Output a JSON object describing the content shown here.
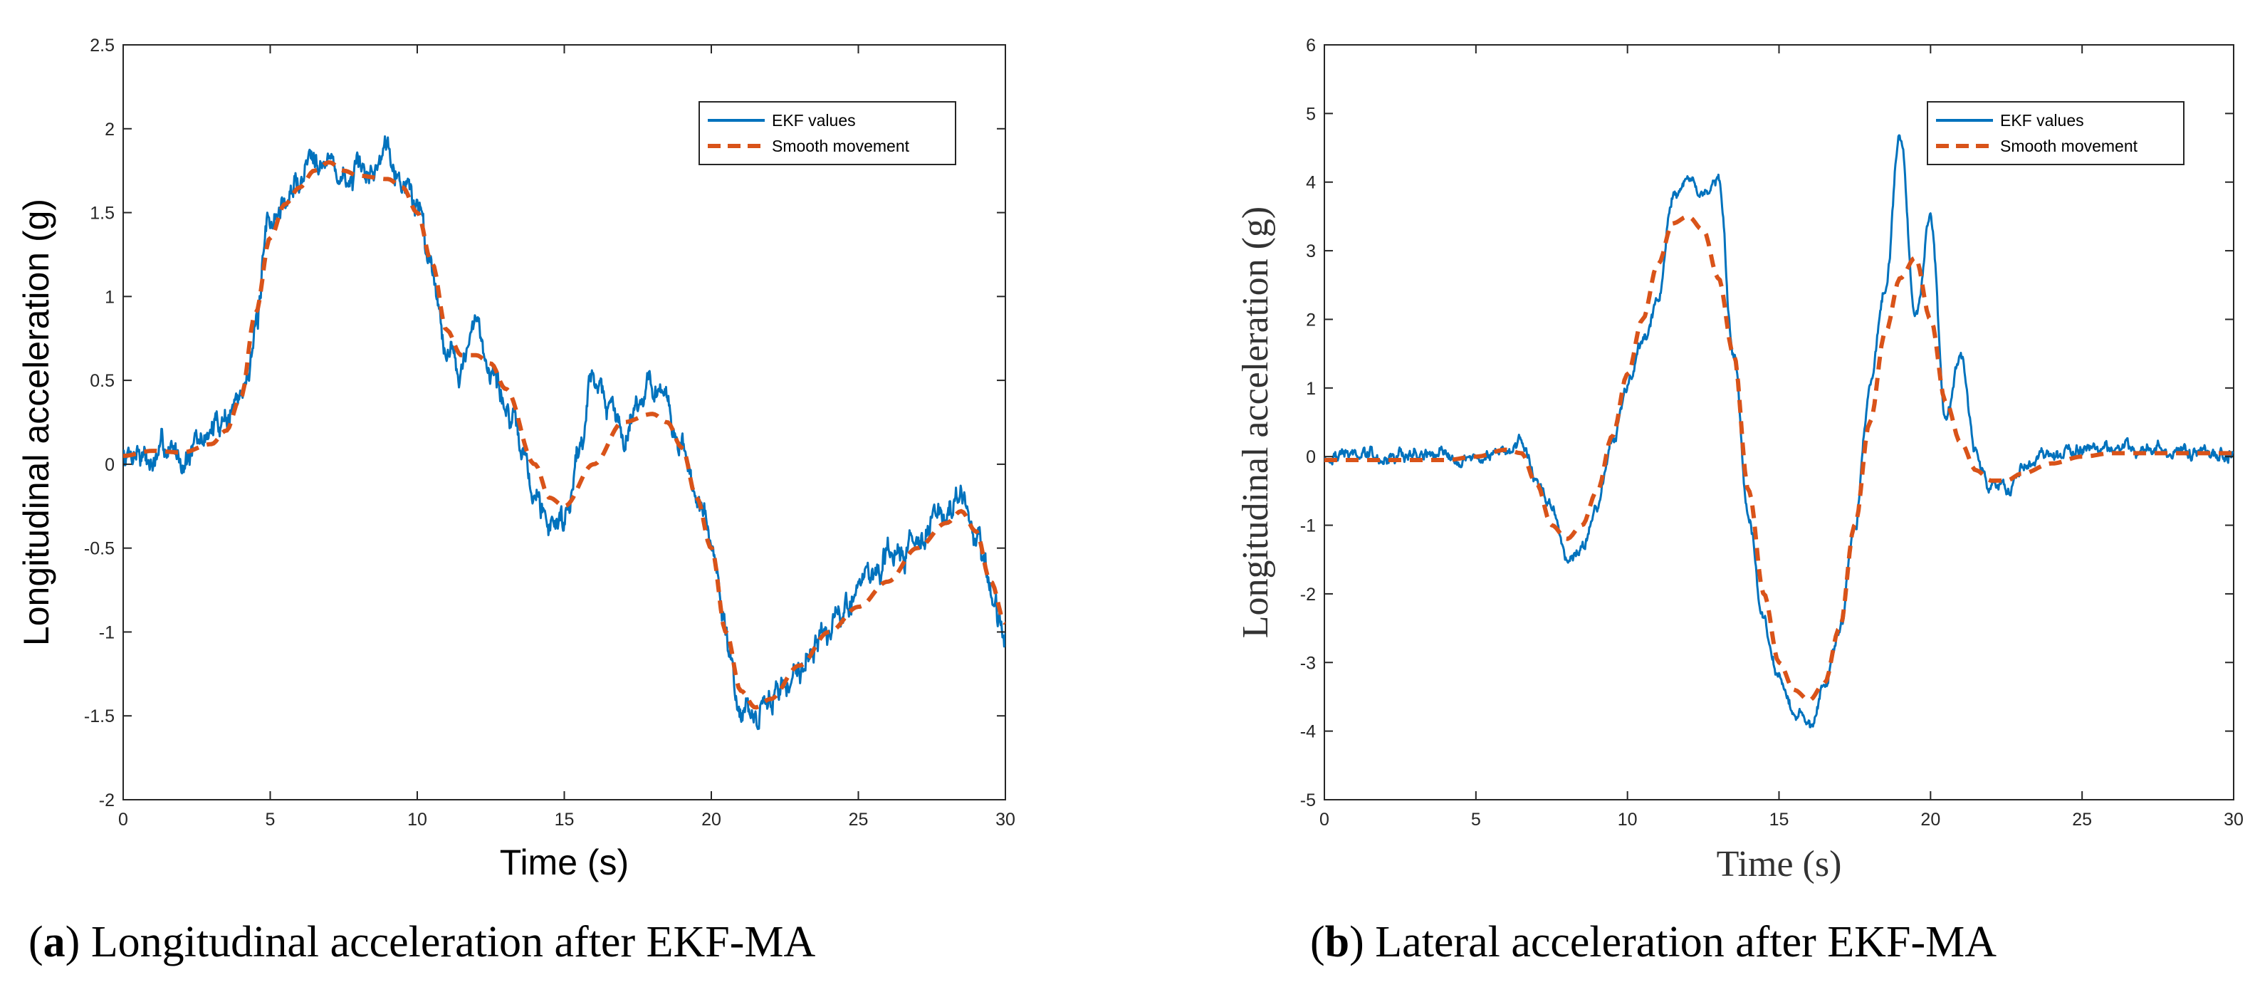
{
  "chart_data": [
    {
      "type": "line",
      "panel_tag": "a",
      "caption_text": "Longitudinal acceleration after EKF-MA",
      "xlabel": "Time (s)",
      "ylabel": "Longitudinal acceleration (g)",
      "xlim": [
        0,
        30
      ],
      "ylim": [
        -2,
        2.5
      ],
      "xticks": [
        "0",
        "5",
        "10",
        "15",
        "20",
        "25",
        "30"
      ],
      "yticks": [
        "-2",
        "-1.5",
        "-1",
        "-0.5",
        "0",
        "0.5",
        "1",
        "1.5",
        "2",
        "2.5"
      ],
      "grid": false,
      "legend_position": "top-right",
      "series": [
        {
          "name": "EKF values",
          "style": "solid",
          "color": "#0072BD",
          "x": [
            0,
            0.5,
            1,
            1.5,
            2,
            2.5,
            3,
            3.5,
            4,
            4.5,
            5,
            5.5,
            6,
            6.5,
            7,
            7.5,
            8,
            8.5,
            9,
            9.5,
            10,
            10.5,
            11,
            11.5,
            12,
            12.5,
            13,
            13.5,
            14,
            14.5,
            15,
            15.5,
            16,
            16.5,
            17,
            17.5,
            18,
            18.5,
            19,
            19.5,
            20,
            20.5,
            21,
            21.5,
            22,
            22.5,
            23,
            23.5,
            24,
            24.5,
            25,
            25.5,
            26,
            26.5,
            27,
            27.5,
            28,
            28.5,
            29,
            29.5,
            30
          ],
          "y": [
            0.05,
            0.1,
            0.0,
            0.1,
            0.05,
            0.1,
            0.2,
            0.3,
            0.4,
            0.8,
            1.45,
            1.55,
            1.7,
            1.9,
            1.8,
            1.7,
            1.7,
            1.75,
            1.95,
            1.7,
            1.55,
            1.2,
            0.7,
            0.6,
            0.8,
            0.6,
            0.35,
            0.1,
            -0.2,
            -0.35,
            -0.3,
            0.1,
            0.55,
            0.35,
            0.2,
            0.4,
            0.5,
            0.3,
            0.1,
            -0.2,
            -0.5,
            -1.0,
            -1.45,
            -1.55,
            -1.4,
            -1.3,
            -1.2,
            -1.05,
            -1.0,
            -0.9,
            -0.7,
            -0.65,
            -0.6,
            -0.5,
            -0.4,
            -0.35,
            -0.3,
            -0.2,
            -0.45,
            -0.8,
            -1.05
          ],
          "noise_amplitude": 0.07
        },
        {
          "name": "Smooth movement",
          "style": "dashed",
          "color": "#D95319",
          "x": [
            0,
            1,
            2,
            3,
            3.5,
            4,
            4.5,
            5,
            5.5,
            6,
            6.5,
            7,
            7.5,
            8,
            9,
            9.5,
            10,
            10.5,
            11,
            11.5,
            12,
            12.5,
            13,
            14,
            14.5,
            15,
            16,
            17,
            18,
            18.5,
            19,
            19.5,
            20,
            20.5,
            21,
            21.5,
            22,
            23,
            24,
            25,
            26,
            27,
            28,
            28.5,
            29,
            29.5,
            30
          ],
          "y": [
            0.05,
            0.08,
            0.07,
            0.12,
            0.2,
            0.4,
            0.9,
            1.35,
            1.55,
            1.65,
            1.75,
            1.8,
            1.75,
            1.72,
            1.7,
            1.65,
            1.5,
            1.2,
            0.8,
            0.65,
            0.65,
            0.6,
            0.45,
            0.0,
            -0.2,
            -0.25,
            0.0,
            0.25,
            0.3,
            0.25,
            0.1,
            -0.2,
            -0.5,
            -1.0,
            -1.35,
            -1.45,
            -1.4,
            -1.2,
            -1.0,
            -0.85,
            -0.7,
            -0.5,
            -0.35,
            -0.28,
            -0.4,
            -0.7,
            -0.95
          ]
        }
      ]
    },
    {
      "type": "line",
      "panel_tag": "b",
      "caption_text": "Lateral acceleration after EKF-MA",
      "xlabel": "Time (s)",
      "ylabel": "Longitudinal acceleration (g)",
      "xlim": [
        0,
        30
      ],
      "ylim": [
        -5,
        6
      ],
      "xticks": [
        "0",
        "5",
        "10",
        "15",
        "20",
        "25",
        "30"
      ],
      "yticks": [
        "-5",
        "-4",
        "-3",
        "-2",
        "-1",
        "0",
        "1",
        "2",
        "3",
        "4",
        "5",
        "6"
      ],
      "grid": false,
      "legend_position": "top-right",
      "series": [
        {
          "name": "EKF values",
          "style": "solid",
          "color": "#0072BD",
          "x": [
            0,
            1,
            2,
            3,
            4,
            5,
            6,
            6.5,
            7,
            7.5,
            8,
            8.5,
            9,
            9.5,
            10,
            10.5,
            11,
            11.5,
            12,
            12.5,
            13,
            13.5,
            14,
            14.5,
            15,
            15.5,
            16,
            16.5,
            17,
            17.5,
            18,
            18.5,
            19,
            19.5,
            20,
            20.5,
            21,
            21.5,
            22,
            22.5,
            23,
            24,
            25,
            26,
            27,
            28,
            29,
            30
          ],
          "y": [
            0.0,
            0.05,
            -0.05,
            0.05,
            0.0,
            0.0,
            0.1,
            0.2,
            -0.3,
            -0.8,
            -1.5,
            -1.3,
            -0.8,
            0.2,
            1.0,
            1.6,
            2.2,
            3.8,
            4.0,
            3.9,
            4.0,
            1.5,
            -1.0,
            -2.5,
            -3.2,
            -3.7,
            -3.9,
            -3.3,
            -2.5,
            -1.0,
            1.0,
            2.5,
            4.7,
            2.0,
            3.5,
            0.5,
            1.4,
            0.0,
            -0.4,
            -0.5,
            -0.2,
            0.0,
            0.1,
            0.15,
            0.1,
            0.1,
            0.05,
            0.0
          ],
          "noise_amplitude": 0.08
        },
        {
          "name": "Smooth movement",
          "style": "dashed",
          "color": "#D95319",
          "x": [
            0,
            1,
            2,
            3,
            4,
            5,
            6,
            6.5,
            7,
            7.5,
            8,
            8.5,
            9,
            9.5,
            10,
            10.5,
            11,
            11.5,
            12,
            12.5,
            13,
            13.5,
            14,
            14.5,
            15,
            15.5,
            16,
            16.5,
            17,
            17.5,
            18,
            18.5,
            19,
            19.5,
            20,
            20.5,
            21,
            21.5,
            22,
            22.5,
            23,
            24,
            25,
            26,
            27,
            28,
            29,
            30
          ],
          "y": [
            -0.05,
            -0.05,
            -0.05,
            -0.05,
            -0.05,
            0.0,
            0.1,
            0.05,
            -0.4,
            -1.0,
            -1.2,
            -1.0,
            -0.5,
            0.3,
            1.2,
            2.0,
            2.8,
            3.4,
            3.5,
            3.3,
            2.6,
            1.5,
            -0.5,
            -2.0,
            -3.0,
            -3.4,
            -3.55,
            -3.3,
            -2.5,
            -1.0,
            0.5,
            1.8,
            2.6,
            2.9,
            2.0,
            0.8,
            0.2,
            -0.2,
            -0.35,
            -0.35,
            -0.25,
            -0.1,
            0.0,
            0.05,
            0.05,
            0.05,
            0.05,
            0.05
          ]
        }
      ]
    }
  ]
}
